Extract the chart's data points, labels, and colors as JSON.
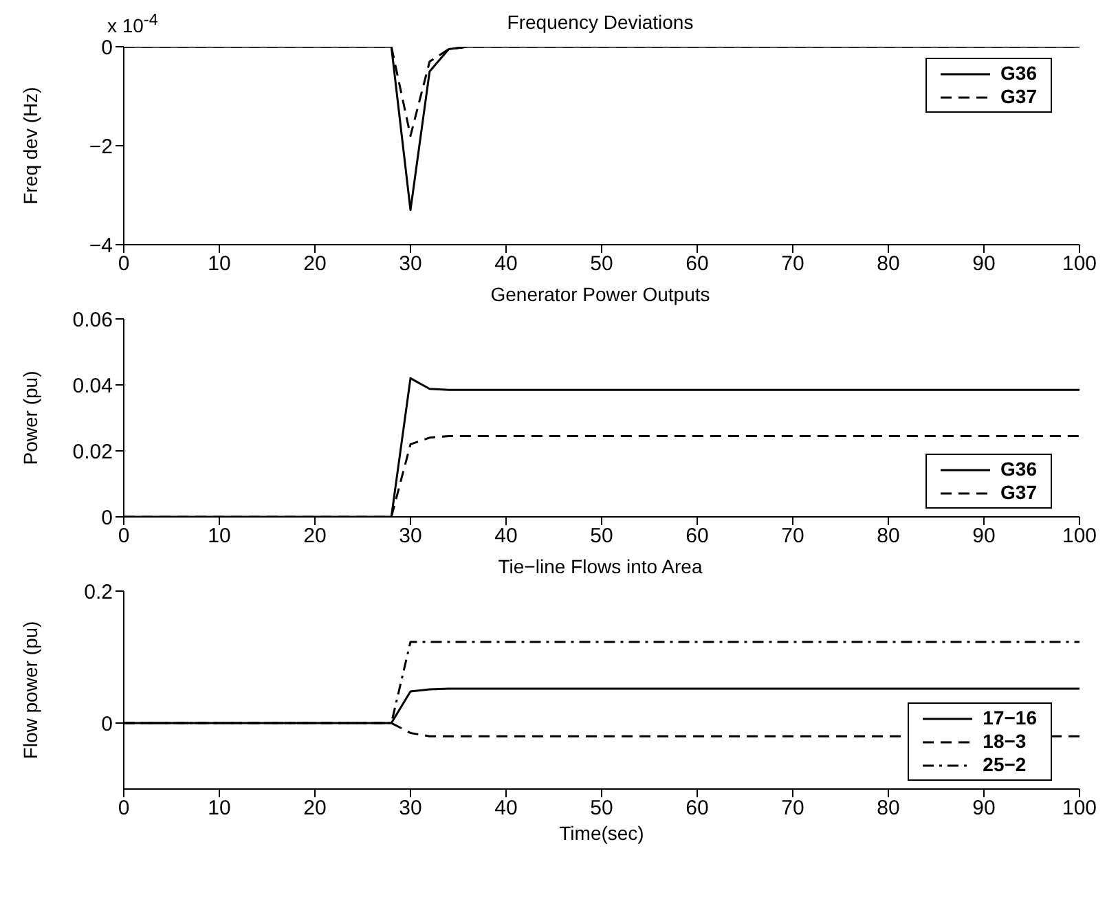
{
  "chart_data": [
    {
      "type": "line",
      "title": "Frequency Deviations",
      "ylabel": "Freq dev (Hz)",
      "annotations": [
        "x 10$^{-4}$"
      ],
      "x": [
        0,
        28,
        30,
        32,
        34,
        36,
        100
      ],
      "xlim": [
        0,
        100
      ],
      "xticks": [
        0,
        10,
        20,
        30,
        40,
        50,
        60,
        70,
        80,
        90,
        100
      ],
      "ylim": [
        -4,
        0
      ],
      "yticks": [
        -4,
        -2,
        0
      ],
      "legend": "top right",
      "marker": "none",
      "series": [
        {
          "name": "G36",
          "color": "#000000",
          "line_style": "solid",
          "values": [
            0,
            0,
            -3.3,
            -0.5,
            -0.05,
            0,
            0
          ]
        },
        {
          "name": "G37",
          "color": "#000000",
          "line_style": "dashed",
          "values": [
            0,
            0,
            -1.8,
            -0.3,
            -0.05,
            0,
            0
          ]
        }
      ]
    },
    {
      "type": "line",
      "title": "Generator Power Outputs",
      "ylabel": "Power (pu)",
      "x": [
        0,
        28,
        30,
        32,
        34,
        100
      ],
      "xlim": [
        0,
        100
      ],
      "xticks": [
        0,
        10,
        20,
        30,
        40,
        50,
        60,
        70,
        80,
        90,
        100
      ],
      "ylim": [
        0,
        0.06
      ],
      "yticks": [
        0,
        0.02,
        0.04,
        0.06
      ],
      "legend": "bottom right",
      "marker": "none",
      "series": [
        {
          "name": "G36",
          "color": "#000000",
          "line_style": "solid",
          "values": [
            0,
            0,
            0.042,
            0.0388,
            0.0385,
            0.0385
          ]
        },
        {
          "name": "G37",
          "color": "#000000",
          "line_style": "dashed",
          "values": [
            0,
            0,
            0.022,
            0.024,
            0.0245,
            0.0245
          ]
        }
      ]
    },
    {
      "type": "line",
      "title": "Tie−line Flows into Area",
      "xlabel": "Time(sec)",
      "ylabel": "Flow power (pu)",
      "x": [
        0,
        28,
        30,
        32,
        34,
        100
      ],
      "xlim": [
        0,
        100
      ],
      "xticks": [
        0,
        10,
        20,
        30,
        40,
        50,
        60,
        70,
        80,
        90,
        100
      ],
      "ylim": [
        -0.1,
        0.2
      ],
      "yticks": [
        0,
        0.2
      ],
      "legend": "bottom right",
      "marker": "none",
      "series": [
        {
          "name": "17−16",
          "color": "#000000",
          "line_style": "solid",
          "values": [
            0,
            0,
            0.048,
            0.051,
            0.052,
            0.052
          ]
        },
        {
          "name": "18−3",
          "color": "#000000",
          "line_style": "dashed",
          "values": [
            0,
            0,
            -0.015,
            -0.02,
            -0.02,
            -0.02
          ]
        },
        {
          "name": "25−2",
          "color": "#000000",
          "line_style": "dashdot",
          "values": [
            0,
            0,
            0.123,
            0.123,
            0.123,
            0.123
          ]
        }
      ]
    }
  ]
}
